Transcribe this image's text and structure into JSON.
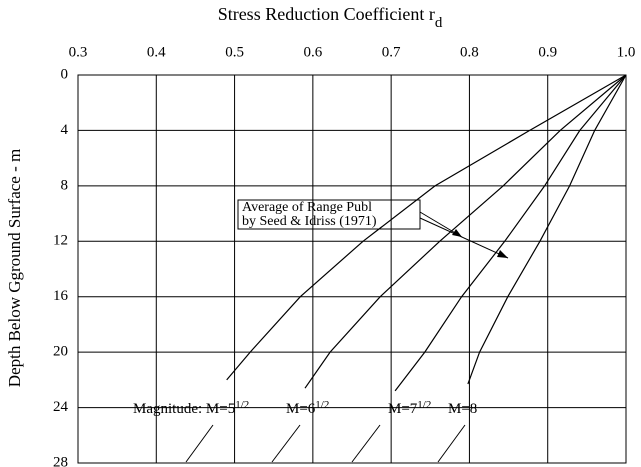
{
  "chart_data": {
    "type": "line",
    "title": "Stress Reduction Coefficient  r",
    "title_sub": "d",
    "y_label": "Depth Below Gground Surface - m",
    "xlim": [
      0.3,
      1.0
    ],
    "xticks": [
      0.3,
      0.4,
      0.5,
      0.6,
      0.7,
      0.8,
      0.9,
      {
        "value": 1.0,
        "label": "1.0"
      }
    ],
    "ylim": [
      0,
      28
    ],
    "yticks": [
      0,
      4,
      8,
      12,
      16,
      20,
      24,
      28
    ],
    "y_inverted": true,
    "x_axis_position": "top",
    "grid": true,
    "series": [
      {
        "name": "M=5",
        "name_sup": "1/2",
        "prefix": "Magnitude: ",
        "color": "#000000",
        "x": [
          1.0,
          0.877,
          0.756,
          0.664,
          0.584,
          0.52,
          0.49
        ],
        "values": [
          0,
          4,
          8,
          12,
          16,
          20,
          22.0
        ]
      },
      {
        "name": "M=6",
        "name_sup": "1/2",
        "color": "#000000",
        "x": [
          1.0,
          0.916,
          0.843,
          0.762,
          0.686,
          0.622,
          0.59
        ],
        "values": [
          0,
          4,
          8,
          12,
          16,
          20,
          22.6
        ]
      },
      {
        "name": "M=7",
        "name_sup": "1/2",
        "color": "#000000",
        "x": [
          1.0,
          0.941,
          0.896,
          0.845,
          0.79,
          0.743,
          0.705
        ],
        "values": [
          0,
          4,
          8,
          12,
          16,
          20,
          22.8
        ]
      },
      {
        "name": "M=8",
        "color": "#000000",
        "x": [
          1.0,
          0.96,
          0.928,
          0.89,
          0.849,
          0.813,
          0.798
        ],
        "values": [
          0,
          4,
          8,
          12,
          16,
          20,
          22.3
        ]
      }
    ],
    "annotation": [
      "Average of Range Publ",
      "by Seed & Idriss (1971)"
    ]
  }
}
